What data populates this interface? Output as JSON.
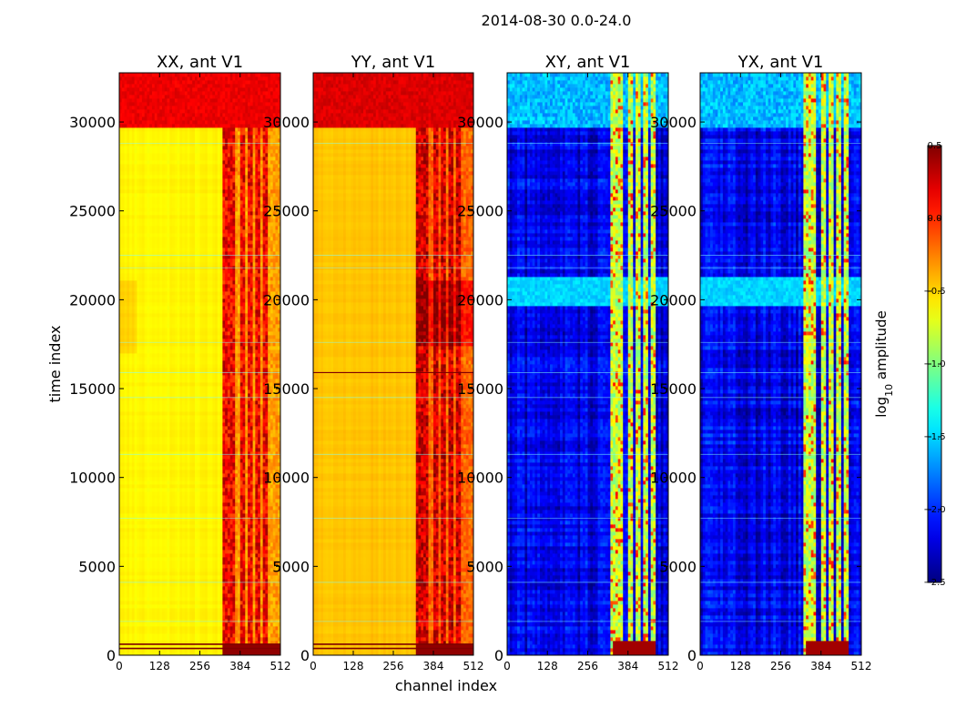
{
  "chart_data": {
    "type": "heatmap",
    "suptitle": "2014-08-30 0.0-24.0",
    "xlabel": "channel index",
    "ylabel": "time index",
    "xticks": [
      0,
      128,
      256,
      384,
      512
    ],
    "xlim": [
      0,
      512
    ],
    "yticks": [
      0,
      5000,
      10000,
      15000,
      20000,
      25000,
      30000
    ],
    "ylim": [
      0,
      32768
    ],
    "colormap": "jet",
    "colorbar": {
      "label_prefix": "log",
      "label_sub": "10",
      "label_suffix": " amplitude",
      "ticks": [
        "0.5",
        "0.0",
        "−0.5",
        "−1.0",
        "−1.5",
        "−2.0",
        "−2.5"
      ],
      "tick_values": [
        0.5,
        0.0,
        -0.5,
        -1.0,
        -1.5,
        -2.0,
        -2.5
      ],
      "range": [
        -2.5,
        0.5
      ]
    },
    "panels": [
      {
        "title": "XX, ant V1",
        "kind": "auto",
        "base_level": -0.6,
        "top_block_level": 0.15,
        "top_block_start": 29700,
        "rfi_level": 0.2,
        "pol_seed": 1
      },
      {
        "title": "YY, ant V1",
        "kind": "auto",
        "base_level": -0.45,
        "top_block_level": 0.2,
        "top_block_start": 29700,
        "rfi_level": 0.3,
        "pol_seed": 2
      },
      {
        "title": "XY, ant V1",
        "kind": "cross",
        "base_level": -2.2,
        "band_level": -1.6,
        "band_range": [
          19700,
          21200
        ],
        "rfi_level": -0.8,
        "pol_seed": 3
      },
      {
        "title": "YX, ant V1",
        "kind": "cross",
        "base_level": -2.2,
        "band_level": -1.6,
        "band_range": [
          19700,
          21200
        ],
        "rfi_level": -0.8,
        "pol_seed": 4
      }
    ],
    "rfi_channels": [
      [
        334,
        346
      ],
      [
        356,
        366
      ],
      [
        384,
        395
      ],
      [
        412,
        422
      ],
      [
        436,
        444
      ],
      [
        462,
        470
      ]
    ]
  }
}
